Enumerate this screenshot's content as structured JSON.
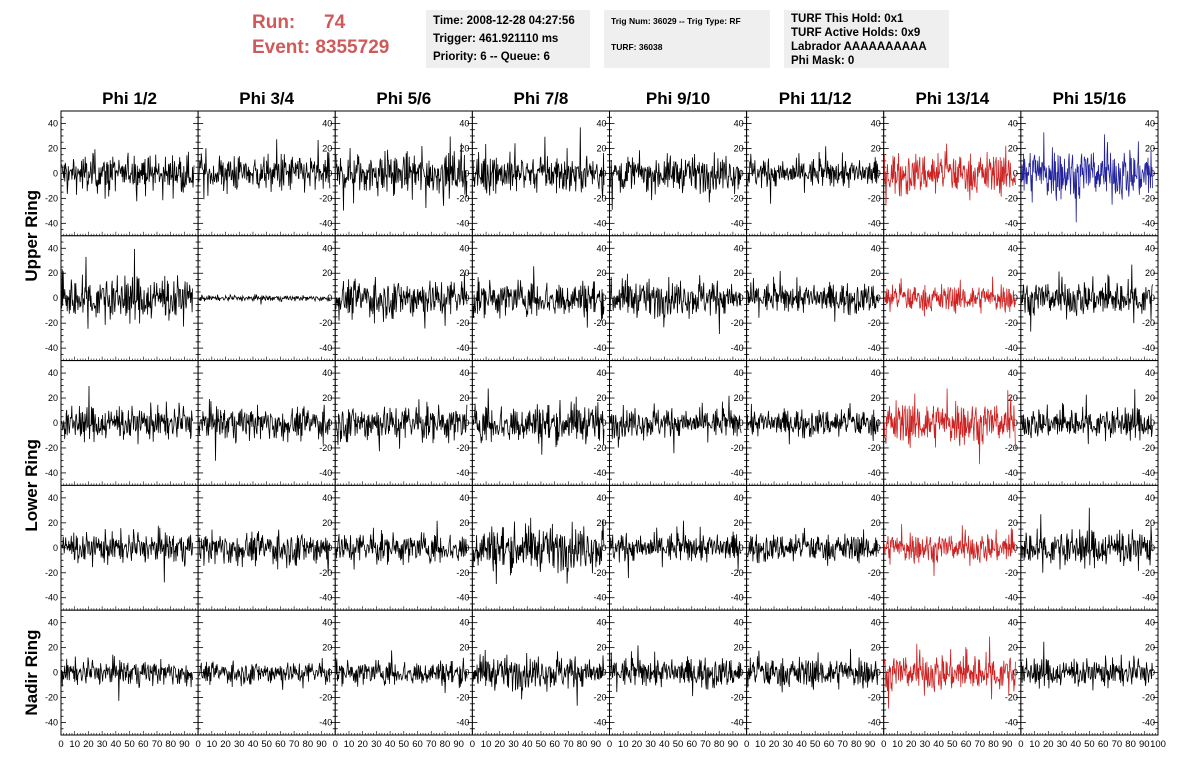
{
  "header": {
    "run_label": "Run:",
    "run_value": "74",
    "event_label": "Event:",
    "event_value": "8355729"
  },
  "info": {
    "time": "Time: 2008-12-28 04:27:56",
    "trigger": "Trigger: 461.921110 ms",
    "priority": "Priority: 6 -- Queue: 6",
    "trig_num": "Trig Num: 36029 -- Trig Type: RF",
    "turf": "TURF: 36038",
    "turf_this_hold": "TURF This Hold: 0x1",
    "turf_active_holds": "TURF Active Holds: 0x9",
    "labrador": "Labrador AAAAAAAAAA",
    "phi_mask": "Phi Mask: 0"
  },
  "chart_data": {
    "type": "line",
    "columns": [
      "Phi 1/2",
      "Phi 3/4",
      "Phi 5/6",
      "Phi 7/8",
      "Phi 9/10",
      "Phi 11/12",
      "Phi 13/14",
      "Phi 15/16"
    ],
    "rows": [
      "Upper Ring",
      "Upper Ring",
      "Lower Ring",
      "Lower Ring",
      "Nadir Ring"
    ],
    "row_labels": [
      {
        "text": "Upper Ring",
        "row_start": 0,
        "row_end": 1
      },
      {
        "text": "Lower Ring",
        "row_start": 2,
        "row_end": 3
      },
      {
        "text": "Nadir Ring",
        "row_start": 4,
        "row_end": 4
      }
    ],
    "xlim": [
      0,
      100
    ],
    "ylim": [
      -50,
      50
    ],
    "samples": 260,
    "xticks": [
      0,
      10,
      20,
      30,
      40,
      50,
      60,
      70,
      80,
      90,
      100
    ],
    "yticks": [
      -40,
      -20,
      0,
      20,
      40
    ],
    "colors": {
      "normal": "#000000",
      "highlight": "#cc2222",
      "trigger": "#22229c"
    },
    "highlight_column": 6,
    "trigger_panel": {
      "row": 0,
      "col": 7
    },
    "amplitudes": [
      [
        13,
        14,
        15,
        14,
        13,
        11,
        15,
        19
      ],
      [
        16,
        2,
        14,
        13,
        13,
        11,
        10,
        13
      ],
      [
        12,
        12,
        13,
        14,
        11,
        10,
        16,
        11
      ],
      [
        11,
        12,
        11,
        16,
        11,
        10,
        11,
        13
      ],
      [
        9,
        8,
        9,
        12,
        11,
        11,
        14,
        10
      ]
    ]
  }
}
